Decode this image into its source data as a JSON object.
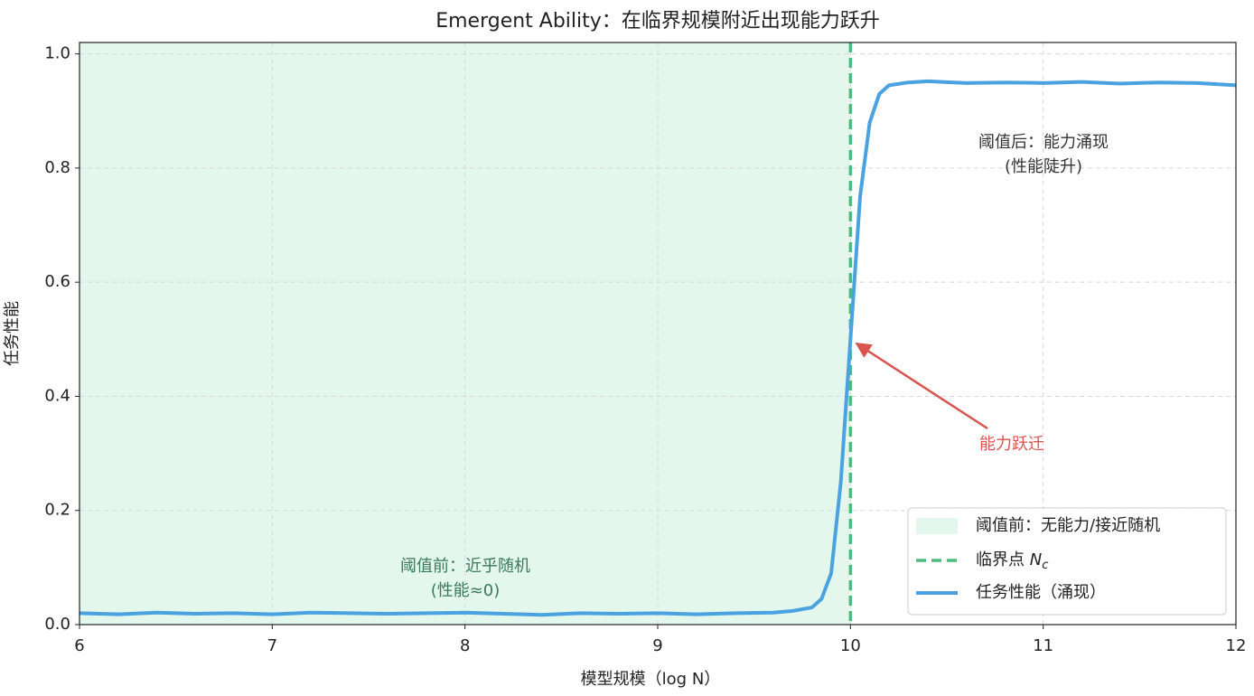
{
  "chart_data": {
    "type": "line",
    "title": "Emergent Ability：在临界规模附近出现能力跃升",
    "x_label": "模型规模（log N）",
    "y_label": "任务性能",
    "x": [
      6.0,
      6.2,
      6.4,
      6.6,
      6.8,
      7.0,
      7.2,
      7.4,
      7.6,
      7.8,
      8.0,
      8.2,
      8.4,
      8.6,
      8.8,
      9.0,
      9.2,
      9.4,
      9.6,
      9.7,
      9.8,
      9.85,
      9.9,
      9.95,
      10.0,
      10.05,
      10.1,
      10.15,
      10.2,
      10.3,
      10.4,
      10.6,
      10.8,
      11.0,
      11.2,
      11.4,
      11.6,
      11.8,
      12.0
    ],
    "series": [
      {
        "name": "任务性能（涌现）",
        "color": "#4aa3e0",
        "values": [
          0.02,
          0.018,
          0.021,
          0.019,
          0.02,
          0.018,
          0.021,
          0.02,
          0.019,
          0.02,
          0.021,
          0.019,
          0.017,
          0.02,
          0.019,
          0.02,
          0.018,
          0.02,
          0.021,
          0.024,
          0.03,
          0.045,
          0.09,
          0.25,
          0.5,
          0.75,
          0.88,
          0.93,
          0.945,
          0.95,
          0.952,
          0.949,
          0.95,
          0.949,
          0.951,
          0.948,
          0.95,
          0.949,
          0.945
        ]
      }
    ],
    "shaded_region": {
      "name": "阈值前：无能力/接近随机",
      "x0": 6,
      "x1": 10,
      "color": "#e3f7ec"
    },
    "threshold": {
      "name": "临界点 ",
      "symbol": "N",
      "subscript": "c",
      "x": 10,
      "color": "#4dbb7f"
    },
    "annotations": [
      {
        "lines": [
          "阈值前：近乎随机",
          "(性能≈0)"
        ],
        "color": "#3a7a58"
      },
      {
        "lines": [
          "阈值后：能力涌现",
          "(性能陡升)"
        ],
        "color": "#333333"
      },
      {
        "lines": [
          "能力跃迁"
        ],
        "color": "#d9534f"
      }
    ],
    "xlim": [
      6,
      12
    ],
    "ylim": [
      0,
      1.02
    ],
    "xticks": [
      6,
      7,
      8,
      9,
      10,
      11,
      12
    ],
    "yticks": [
      {
        "value": 0,
        "label": "0.0"
      },
      {
        "value": 0.2,
        "label": "0.2"
      },
      {
        "value": 0.4,
        "label": "0.4"
      },
      {
        "value": 0.6,
        "label": "0.6"
      },
      {
        "value": 0.8,
        "label": "0.8"
      },
      {
        "value": 1,
        "label": "1.0"
      }
    ],
    "grid": true,
    "legend": "lower right"
  }
}
